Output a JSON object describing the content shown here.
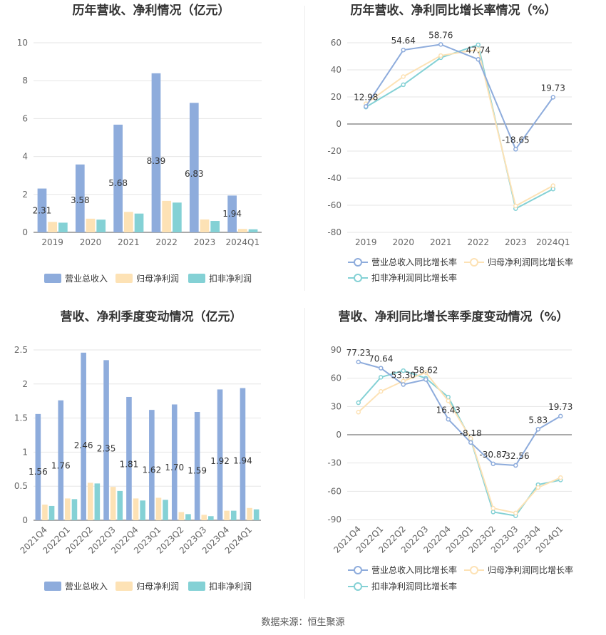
{
  "source_text": "数据来源：恒生聚源",
  "chart_data": [
    {
      "type": "bar",
      "title": "历年营收、净利情况（亿元）",
      "categories": [
        "2019",
        "2020",
        "2021",
        "2022",
        "2023",
        "2024Q1"
      ],
      "ylim": [
        0,
        10
      ],
      "yticks": [
        "0",
        "2",
        "4",
        "6",
        "8",
        "10"
      ],
      "legend_position": "bottom",
      "series": [
        {
          "name": "营业总收入",
          "color": "#8eacdc",
          "values": [
            2.31,
            3.58,
            5.68,
            8.39,
            6.83,
            1.94
          ],
          "labels": [
            "2.31",
            "3.58",
            "5.68",
            "8.39",
            "6.83",
            "1.94"
          ]
        },
        {
          "name": "归母净利润",
          "color": "#fde2b5",
          "values": [
            0.55,
            0.72,
            1.08,
            1.66,
            0.68,
            0.18
          ]
        },
        {
          "name": "扣非净利润",
          "color": "#84d1d5",
          "values": [
            0.51,
            0.67,
            0.99,
            1.57,
            0.6,
            0.16
          ]
        }
      ]
    },
    {
      "type": "line",
      "title": "历年营收、净利同比增长率情况（%）",
      "categories": [
        "2019",
        "2020",
        "2021",
        "2022",
        "2023",
        "2024Q1"
      ],
      "ylim": [
        -80,
        60
      ],
      "yticks": [
        "-80",
        "-60",
        "-40",
        "-20",
        "0",
        "20",
        "40",
        "60"
      ],
      "legend_position": "bottom",
      "series": [
        {
          "name": "营业总收入同比增长率",
          "color": "#8eacdc",
          "values": [
            12.98,
            54.64,
            58.76,
            47.74,
            -18.65,
            19.73
          ],
          "labels": [
            "12.98",
            "54.64",
            "58.76",
            "47.74",
            "-18.65",
            "19.73"
          ]
        },
        {
          "name": "归母净利润同比增长率",
          "color": "#fde2b5",
          "values": [
            15.0,
            35.0,
            50.5,
            55.0,
            -60.5,
            -45.5
          ]
        },
        {
          "name": "扣非净利润同比增长率",
          "color": "#84d1d5",
          "values": [
            12.5,
            29.0,
            49.0,
            58.5,
            -62.5,
            -48.0
          ]
        }
      ]
    },
    {
      "type": "bar",
      "title": "营收、净利季度变动情况（亿元）",
      "categories": [
        "2021Q4",
        "2022Q1",
        "2022Q2",
        "2022Q3",
        "2022Q4",
        "2023Q1",
        "2023Q2",
        "2023Q3",
        "2023Q4",
        "2024Q1"
      ],
      "ylim": [
        0,
        2.5
      ],
      "yticks": [
        "0",
        "0.5",
        "1",
        "1.5",
        "2",
        "2.5"
      ],
      "legend_position": "bottom",
      "series": [
        {
          "name": "营业总收入",
          "color": "#8eacdc",
          "values": [
            1.56,
            1.76,
            2.46,
            2.35,
            1.81,
            1.62,
            1.7,
            1.59,
            1.92,
            1.94
          ],
          "labels": [
            "1.56",
            "1.76",
            "2.46",
            "2.35",
            "1.81",
            "1.62",
            "1.70",
            "1.59",
            "1.92",
            "1.94"
          ]
        },
        {
          "name": "归母净利润",
          "color": "#fde2b5",
          "values": [
            0.23,
            0.32,
            0.55,
            0.49,
            0.32,
            0.33,
            0.12,
            0.08,
            0.14,
            0.18
          ]
        },
        {
          "name": "扣非净利润",
          "color": "#84d1d5",
          "values": [
            0.21,
            0.31,
            0.54,
            0.43,
            0.29,
            0.3,
            0.09,
            0.06,
            0.14,
            0.16
          ]
        }
      ]
    },
    {
      "type": "line",
      "title": "营收、净利同比增长率季度变动情况（%）",
      "categories": [
        "2021Q4",
        "2022Q1",
        "2022Q2",
        "2022Q3",
        "2022Q4",
        "2023Q1",
        "2023Q2",
        "2023Q3",
        "2023Q4",
        "2024Q1"
      ],
      "ylim": [
        -90,
        90
      ],
      "yticks": [
        "-90",
        "-60",
        "-30",
        "0",
        "30",
        "60",
        "90"
      ],
      "legend_position": "bottom",
      "series": [
        {
          "name": "营业总收入同比增长率",
          "color": "#8eacdc",
          "values": [
            77.23,
            70.64,
            53.3,
            58.62,
            16.43,
            -8.18,
            -30.87,
            -32.56,
            5.83,
            19.73
          ],
          "labels": [
            "77.23",
            "70.64",
            "53.30",
            "58.62",
            "16.43",
            "-8.18",
            "-30.87",
            "-32.56",
            "5.83",
            "19.73"
          ]
        },
        {
          "name": "归母净利润同比增长率",
          "color": "#fde2b5",
          "values": [
            24.0,
            46.0,
            57.0,
            66.0,
            36.0,
            -4.0,
            -78.0,
            -83.0,
            -56.0,
            -45.5
          ]
        },
        {
          "name": "扣非净利润同比增长率",
          "color": "#84d1d5",
          "values": [
            34.0,
            61.0,
            68.0,
            60.0,
            40.0,
            -5.0,
            -82.0,
            -86.0,
            -53.0,
            -48.0
          ]
        }
      ]
    }
  ]
}
